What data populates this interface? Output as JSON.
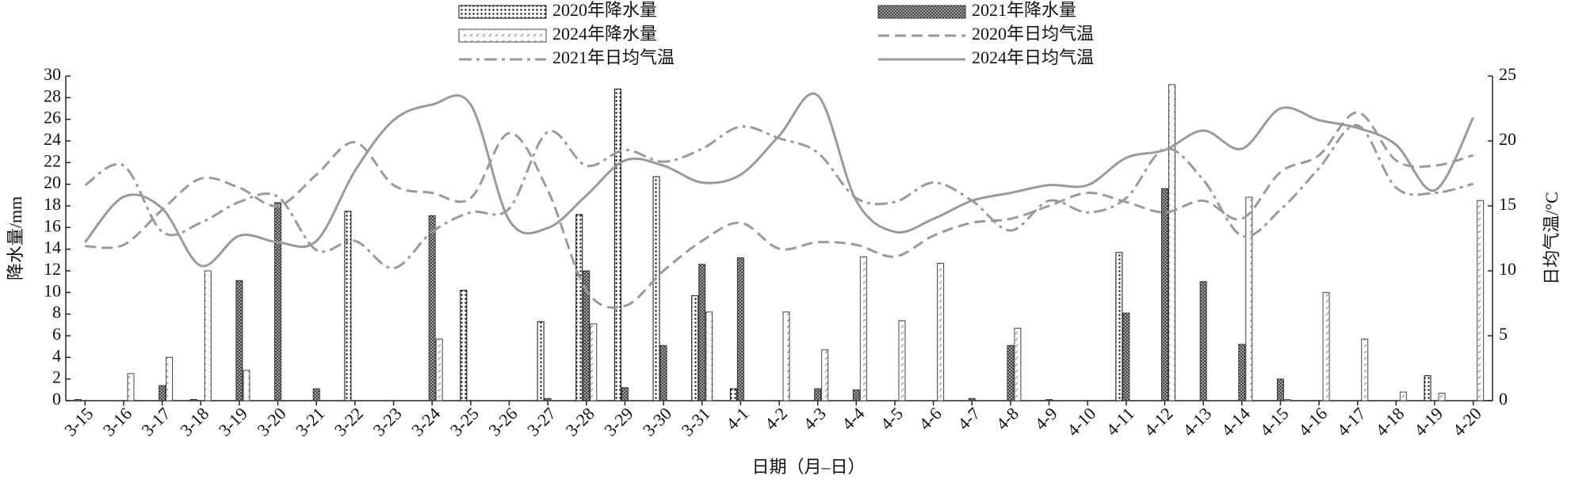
{
  "chart_data": {
    "type": "bar_line",
    "categories": [
      "3-15",
      "3-16",
      "3-17",
      "3-18",
      "3-19",
      "3-20",
      "3-21",
      "3-22",
      "3-23",
      "3-24",
      "3-25",
      "3-26",
      "3-27",
      "3-28",
      "3-29",
      "3-30",
      "3-31",
      "4-1",
      "4-2",
      "4-3",
      "4-4",
      "4-5",
      "4-6",
      "4-7",
      "4-8",
      "4-9",
      "4-10",
      "4-11",
      "4-12",
      "4-13",
      "4-14",
      "4-15",
      "4-16",
      "4-17",
      "4-18",
      "4-19",
      "4-20"
    ],
    "x_label": "日期（月–日）",
    "y_label": "降水量/mm",
    "y2_label": "日均气温/°C",
    "ylim": [
      0,
      30
    ],
    "yticks": [
      0,
      2,
      4,
      6,
      8,
      10,
      12,
      14,
      16,
      18,
      20,
      22,
      24,
      26,
      28,
      30
    ],
    "y2lim": [
      0,
      25
    ],
    "y2ticks": [
      0,
      5,
      10,
      15,
      20,
      25
    ],
    "series": [
      {
        "name": "2020年降水量",
        "kind": "bar",
        "pattern": "dots",
        "color": "#111111",
        "values": [
          0.1,
          0,
          0,
          0.1,
          0,
          0,
          0,
          17.5,
          0,
          0,
          10.2,
          0,
          7.3,
          17.2,
          28.8,
          20.7,
          9.7,
          1.1,
          0,
          0,
          0,
          0,
          0,
          0,
          0,
          0,
          0,
          13.7,
          0,
          0,
          0,
          0,
          0,
          0,
          0,
          2.3,
          0
        ]
      },
      {
        "name": "2021年降水量",
        "kind": "bar",
        "pattern": "cross",
        "color": "#333333",
        "values": [
          0,
          0,
          1.4,
          0,
          11.1,
          18.3,
          1.1,
          0,
          0,
          17.1,
          0,
          0,
          0.2,
          12.0,
          1.2,
          5.1,
          12.6,
          13.2,
          0,
          1.1,
          1.0,
          0,
          0,
          0.2,
          5.1,
          0.1,
          0,
          8.1,
          19.6,
          11.0,
          5.2,
          2.0,
          0,
          0,
          0,
          0,
          0
        ]
      },
      {
        "name": "2024年降水量",
        "kind": "bar",
        "pattern": "dashes",
        "color": "#444444",
        "values": [
          0,
          2.5,
          4.0,
          12.0,
          2.8,
          0,
          0,
          0,
          0,
          5.7,
          0,
          0,
          0,
          7.1,
          0,
          0,
          8.2,
          0,
          8.2,
          4.7,
          13.3,
          7.4,
          12.7,
          0,
          6.7,
          0,
          0,
          0,
          29.2,
          0,
          18.8,
          0.1,
          10.0,
          5.7,
          0.8,
          0.7,
          18.5
        ]
      },
      {
        "name": "2020年日均气温",
        "kind": "line",
        "axis": "y2",
        "linestyle": "dashed",
        "color": "#9a9a9a",
        "values": [
          11.9,
          12.0,
          14.7,
          17.1,
          16.4,
          15.0,
          17.4,
          19.9,
          16.6,
          16.0,
          15.6,
          20.6,
          16.2,
          8.5,
          7.3,
          10.0,
          12.3,
          13.7,
          11.7,
          12.2,
          12.0,
          11.1,
          12.7,
          13.7,
          14.0,
          15.0,
          16.0,
          15.3,
          14.5,
          15.4,
          14.0,
          17.6,
          18.9,
          22.2,
          18.5,
          18.1,
          18.9
        ]
      },
      {
        "name": "2021年日均气温",
        "kind": "line",
        "axis": "y2",
        "linestyle": "dashdot",
        "color": "#9a9a9a",
        "values": [
          16.6,
          18.1,
          13.0,
          13.7,
          15.3,
          15.7,
          11.6,
          12.3,
          10.2,
          13.0,
          14.5,
          14.8,
          20.7,
          18.1,
          19.3,
          18.4,
          19.4,
          21.1,
          20.2,
          19.1,
          15.6,
          15.3,
          16.8,
          15.4,
          13.1,
          15.4,
          14.5,
          15.6,
          19.4,
          17.0,
          12.7,
          14.7,
          17.9,
          21.2,
          16.4,
          16.0,
          16.7
        ]
      },
      {
        "name": "2024年日均气温",
        "kind": "line",
        "axis": "y2",
        "linestyle": "solid",
        "color": "#9a9a9a",
        "values": [
          12.2,
          15.7,
          14.8,
          10.4,
          12.7,
          12.2,
          12.3,
          17.7,
          21.6,
          22.8,
          22.8,
          13.9,
          13.3,
          15.8,
          18.5,
          18.1,
          16.8,
          17.4,
          20.4,
          23.5,
          15.4,
          13.0,
          14.0,
          15.4,
          16.0,
          16.6,
          16.6,
          18.7,
          19.3,
          20.8,
          19.4,
          22.5,
          21.6,
          21.0,
          19.7,
          16.2,
          21.8
        ]
      }
    ]
  }
}
